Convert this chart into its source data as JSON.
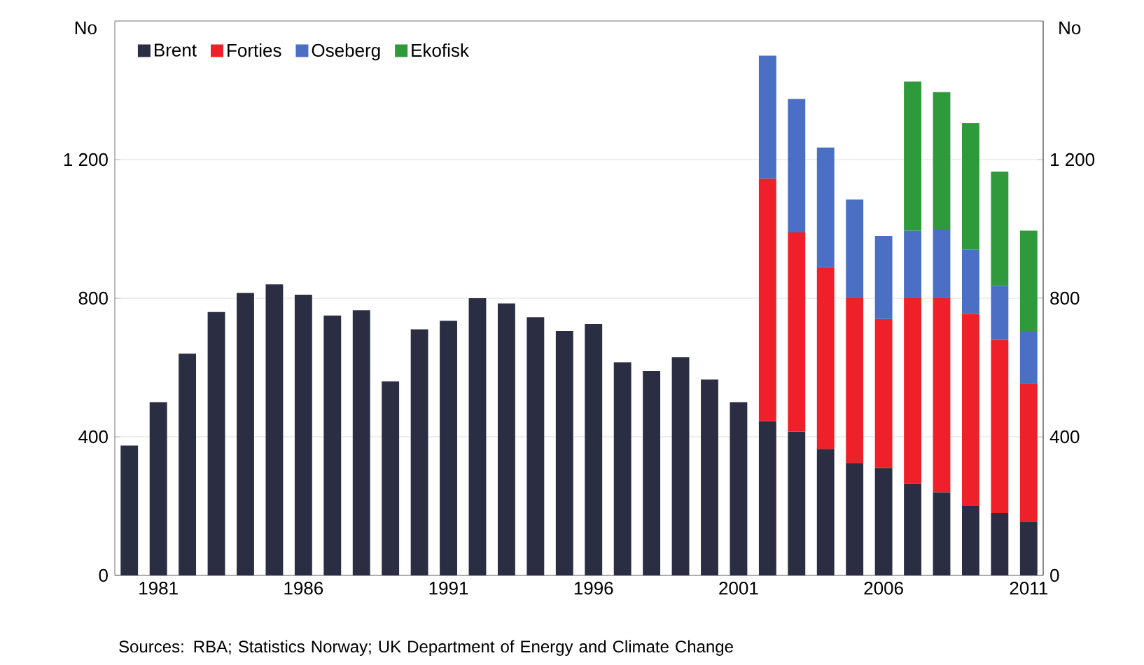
{
  "chart_data": {
    "type": "bar",
    "stacked": true,
    "ylabel": "No",
    "y2label": "No",
    "x": [
      1980,
      1981,
      1982,
      1983,
      1984,
      1985,
      1986,
      1987,
      1988,
      1989,
      1990,
      1991,
      1992,
      1993,
      1994,
      1995,
      1996,
      1997,
      1998,
      1999,
      2000,
      2001,
      2002,
      2003,
      2004,
      2005,
      2006,
      2007,
      2008,
      2009,
      2010,
      2011
    ],
    "xlim": [
      1979.5,
      2011.5
    ],
    "xticks": [
      1981,
      1986,
      1991,
      1996,
      2001,
      2006,
      2011
    ],
    "ylim": [
      0,
      1600
    ],
    "yticks": [
      0,
      400,
      800,
      {
        "value": 1200,
        "label": "1 200"
      }
    ],
    "y2lim": [
      0,
      1600
    ],
    "y2ticks": [
      0,
      400,
      800,
      {
        "value": 1200,
        "label": "1 200"
      }
    ],
    "grid": "y",
    "legend": "top left",
    "series": [
      {
        "name": "Brent",
        "color": "#2b2d42",
        "values": [
          375,
          500,
          640,
          760,
          815,
          840,
          810,
          750,
          765,
          560,
          710,
          735,
          800,
          785,
          745,
          705,
          725,
          615,
          590,
          630,
          565,
          500,
          445,
          415,
          365,
          325,
          310,
          265,
          240,
          200,
          180,
          155
        ]
      },
      {
        "name": "Forties",
        "color": "#f0202a",
        "values": [
          null,
          null,
          null,
          null,
          null,
          null,
          null,
          null,
          null,
          null,
          null,
          null,
          null,
          null,
          null,
          null,
          null,
          null,
          null,
          null,
          null,
          null,
          700,
          575,
          525,
          475,
          430,
          535,
          560,
          555,
          500,
          400
        ]
      },
      {
        "name": "Oseberg",
        "color": "#4a6fc4",
        "values": [
          null,
          null,
          null,
          null,
          null,
          null,
          null,
          null,
          null,
          null,
          null,
          null,
          null,
          null,
          null,
          null,
          null,
          null,
          null,
          null,
          null,
          null,
          355,
          385,
          345,
          285,
          240,
          195,
          200,
          185,
          155,
          150
        ]
      },
      {
        "name": "Ekofisk",
        "color": "#2e9a3c",
        "values": [
          null,
          null,
          null,
          null,
          null,
          null,
          null,
          null,
          null,
          null,
          null,
          null,
          null,
          null,
          null,
          null,
          null,
          null,
          null,
          null,
          null,
          null,
          null,
          null,
          null,
          null,
          null,
          430,
          395,
          365,
          330,
          290
        ]
      }
    ],
    "annotations": [
      "Sources: RBA; Statistics Norway; UK Department of Energy and Climate Change"
    ]
  }
}
